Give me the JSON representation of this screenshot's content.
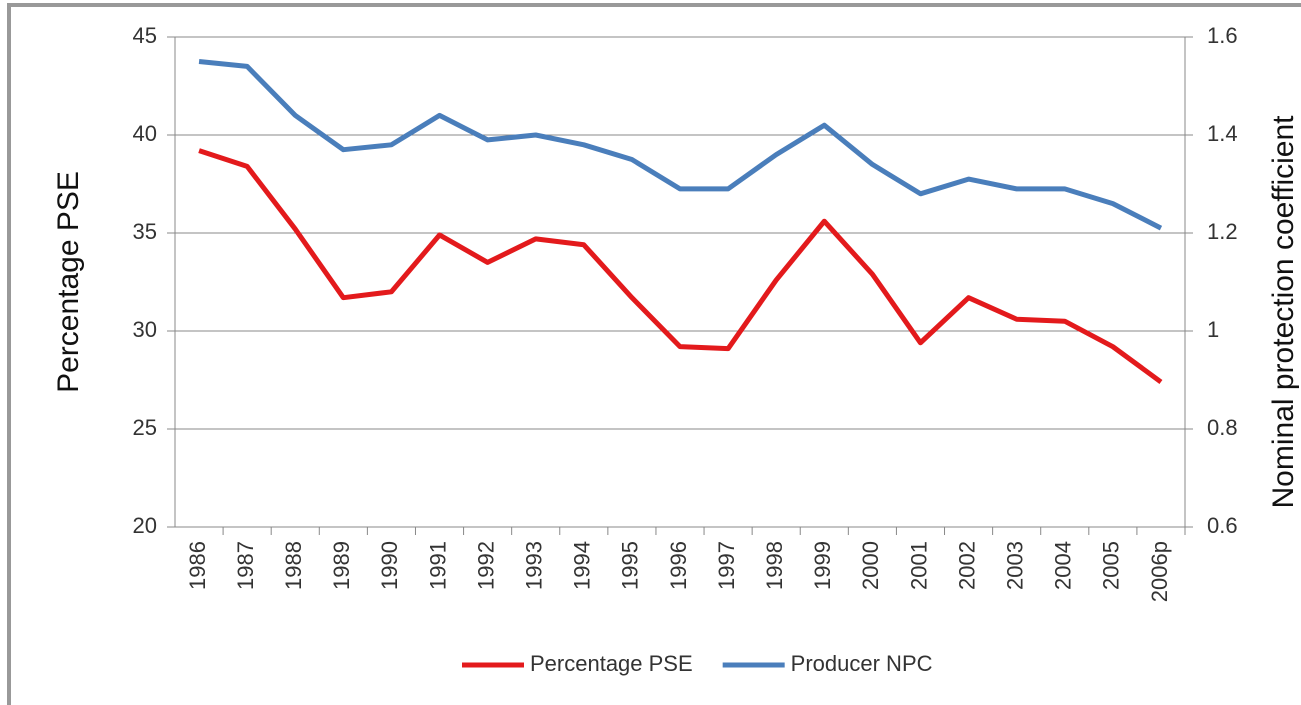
{
  "chart_data": {
    "type": "line",
    "categories": [
      "1986",
      "1987",
      "1988",
      "1989",
      "1990",
      "1991",
      "1992",
      "1993",
      "1994",
      "1995",
      "1996",
      "1997",
      "1998",
      "1999",
      "2000",
      "2001",
      "2002",
      "2003",
      "2004",
      "2005",
      "2006p"
    ],
    "y_label": "Percentage PSE",
    "y2_label": "Nominal protection coefficient",
    "ylim": [
      20,
      45
    ],
    "yticks": [
      20,
      25,
      30,
      35,
      40,
      45
    ],
    "y2lim": [
      0.6,
      1.6
    ],
    "y2ticks": [
      0.6,
      0.8,
      1,
      1.2,
      1.4,
      1.6
    ],
    "grid": true,
    "legend": "bottom",
    "series": [
      {
        "name": "Percentage PSE",
        "color": "#e31a1c",
        "values": [
          39.2,
          38.4,
          35.2,
          31.7,
          32.0,
          34.9,
          33.5,
          34.7,
          34.4,
          31.7,
          29.2,
          29.1,
          32.6,
          35.6,
          32.9,
          29.4,
          31.7,
          30.6,
          30.5,
          29.2,
          27.4
        ]
      },
      {
        "name": "Producer NPC",
        "color": "#4a7ebb",
        "axis": "y2",
        "values": [
          1.55,
          1.54,
          1.44,
          1.37,
          1.38,
          1.44,
          1.39,
          1.4,
          1.38,
          1.35,
          1.29,
          1.29,
          1.36,
          1.42,
          1.34,
          1.28,
          1.31,
          1.29,
          1.29,
          1.26,
          1.21
        ]
      }
    ]
  }
}
